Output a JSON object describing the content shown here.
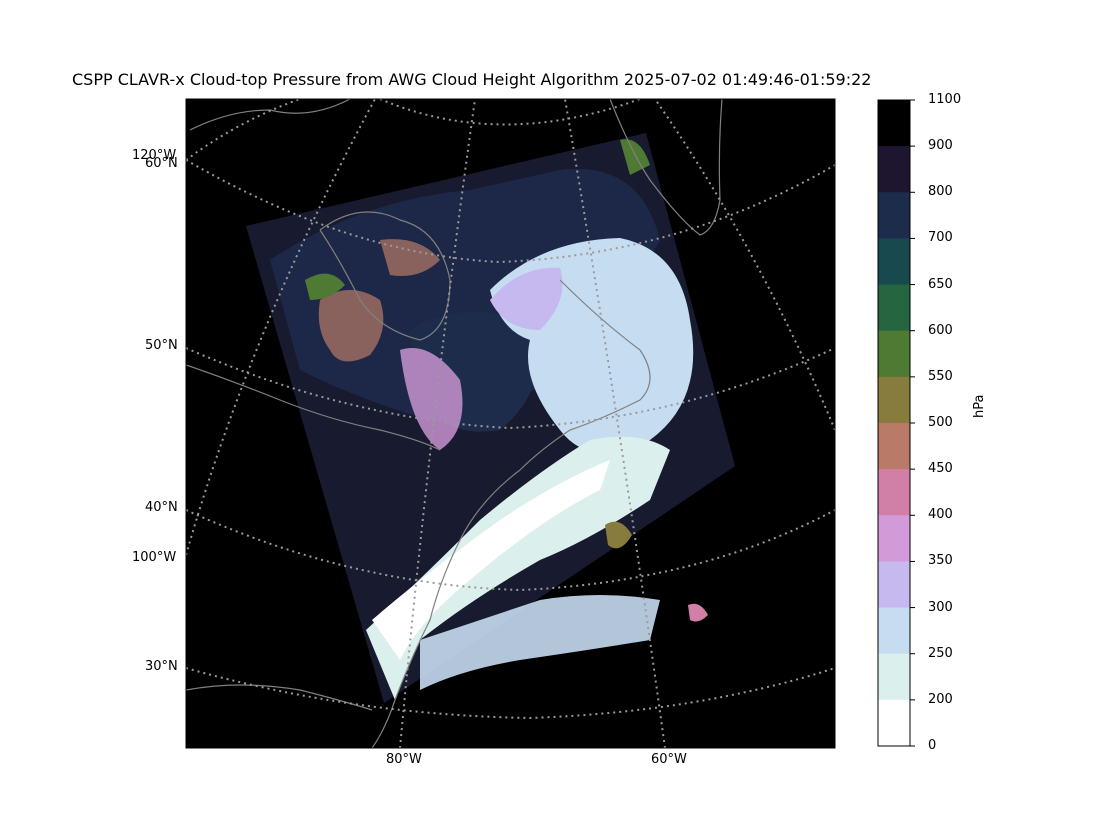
{
  "title": "CSPP CLAVR-x Cloud-top Pressure from AWG Cloud Height Algorithm 2025-07-02 01:49:46-01:59:22",
  "map": {
    "lat_labels": [
      "60°N",
      "50°N",
      "40°N",
      "30°N"
    ],
    "lon_labels_left": [
      "120°W",
      "100°W"
    ],
    "lon_labels_bottom": [
      "80°W",
      "60°W"
    ],
    "coastline_color": "#808080",
    "gridline_color": "#9a9a9a",
    "background_color": "#000000"
  },
  "colorbar": {
    "unit": "hPa",
    "tick_labels": [
      "1100",
      "900",
      "800",
      "700",
      "650",
      "600",
      "550",
      "500",
      "450",
      "400",
      "350",
      "300",
      "250",
      "200",
      "0"
    ],
    "bins": [
      {
        "range": "900-1100",
        "color": "#000000"
      },
      {
        "range": "800-900",
        "color": "#1e1630"
      },
      {
        "range": "700-800",
        "color": "#1e2c4c"
      },
      {
        "range": "650-700",
        "color": "#18494e"
      },
      {
        "range": "600-650",
        "color": "#256540"
      },
      {
        "range": "550-600",
        "color": "#4e7a33"
      },
      {
        "range": "500-550",
        "color": "#877b3d"
      },
      {
        "range": "450-500",
        "color": "#b97a67"
      },
      {
        "range": "400-450",
        "color": "#d17fa6"
      },
      {
        "range": "350-400",
        "color": "#d29ad8"
      },
      {
        "range": "300-350",
        "color": "#c5b9ef"
      },
      {
        "range": "250-300",
        "color": "#c6dcf1"
      },
      {
        "range": "200-250",
        "color": "#dbf0ec"
      },
      {
        "range": "0-200",
        "color": "#ffffff"
      }
    ]
  }
}
